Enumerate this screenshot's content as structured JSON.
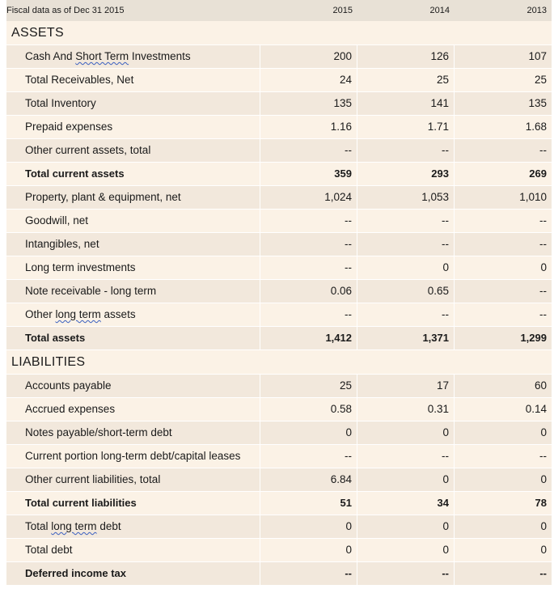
{
  "header": {
    "label": "Fiscal data as of Dec 31 2015",
    "years": [
      "2015",
      "2014",
      "2013"
    ]
  },
  "assets": {
    "title": "ASSETS",
    "rows": [
      {
        "pre": "Cash And ",
        "sq": "Short Term",
        "post": " Investments",
        "values": [
          "200",
          "126",
          "107"
        ],
        "bold": false
      },
      {
        "pre": "Total Receivables, Net",
        "sq": "",
        "post": "",
        "values": [
          "24",
          "25",
          "25"
        ],
        "bold": false
      },
      {
        "pre": "Total Inventory",
        "sq": "",
        "post": "",
        "values": [
          "135",
          "141",
          "135"
        ],
        "bold": false
      },
      {
        "pre": "Prepaid expenses",
        "sq": "",
        "post": "",
        "values": [
          "1.16",
          "1.71",
          "1.68"
        ],
        "bold": false
      },
      {
        "pre": "Other current assets, total",
        "sq": "",
        "post": "",
        "values": [
          "--",
          "--",
          "--"
        ],
        "bold": false
      },
      {
        "pre": "Total current assets",
        "sq": "",
        "post": "",
        "values": [
          "359",
          "293",
          "269"
        ],
        "bold": true
      },
      {
        "pre": "Property, plant & equipment, net",
        "sq": "",
        "post": "",
        "values": [
          "1,024",
          "1,053",
          "1,010"
        ],
        "bold": false
      },
      {
        "pre": "Goodwill, net",
        "sq": "",
        "post": "",
        "values": [
          "--",
          "--",
          "--"
        ],
        "bold": false
      },
      {
        "pre": "Intangibles, net",
        "sq": "",
        "post": "",
        "values": [
          "--",
          "--",
          "--"
        ],
        "bold": false
      },
      {
        "pre": "Long term investments",
        "sq": "",
        "post": "",
        "values": [
          "--",
          "0",
          "0"
        ],
        "bold": false
      },
      {
        "pre": "Note receivable - long term",
        "sq": "",
        "post": "",
        "values": [
          "0.06",
          "0.65",
          "--"
        ],
        "bold": false
      },
      {
        "pre": "Other ",
        "sq": "long term",
        "post": " assets",
        "values": [
          "--",
          "--",
          "--"
        ],
        "bold": false
      },
      {
        "pre": "Total assets",
        "sq": "",
        "post": "",
        "values": [
          "1,412",
          "1,371",
          "1,299"
        ],
        "bold": true
      }
    ]
  },
  "liabilities": {
    "title": "LIABILITIES",
    "rows": [
      {
        "pre": "Accounts payable",
        "sq": "",
        "post": "",
        "values": [
          "25",
          "17",
          "60"
        ],
        "bold": false
      },
      {
        "pre": "Accrued expenses",
        "sq": "",
        "post": "",
        "values": [
          "0.58",
          "0.31",
          "0.14"
        ],
        "bold": false
      },
      {
        "pre": "Notes payable/short-term debt",
        "sq": "",
        "post": "",
        "values": [
          "0",
          "0",
          "0"
        ],
        "bold": false
      },
      {
        "pre": "Current portion long-term debt/capital leases",
        "sq": "",
        "post": "",
        "values": [
          "--",
          "--",
          "--"
        ],
        "bold": false
      },
      {
        "pre": "Other current liabilities, total",
        "sq": "",
        "post": "",
        "values": [
          "6.84",
          "0",
          "0"
        ],
        "bold": false
      },
      {
        "pre": "Total current liabilities",
        "sq": "",
        "post": "",
        "values": [
          "51",
          "34",
          "78"
        ],
        "bold": true
      },
      {
        "pre": "Total ",
        "sq": "long term",
        "post": " debt",
        "values": [
          "0",
          "0",
          "0"
        ],
        "bold": false
      },
      {
        "pre": "Total debt",
        "sq": "",
        "post": "",
        "values": [
          "0",
          "0",
          "0"
        ],
        "bold": false
      },
      {
        "pre": "Deferred income tax",
        "sq": "",
        "post": "",
        "values": [
          "--",
          "--",
          "--"
        ],
        "bold": true
      }
    ]
  }
}
